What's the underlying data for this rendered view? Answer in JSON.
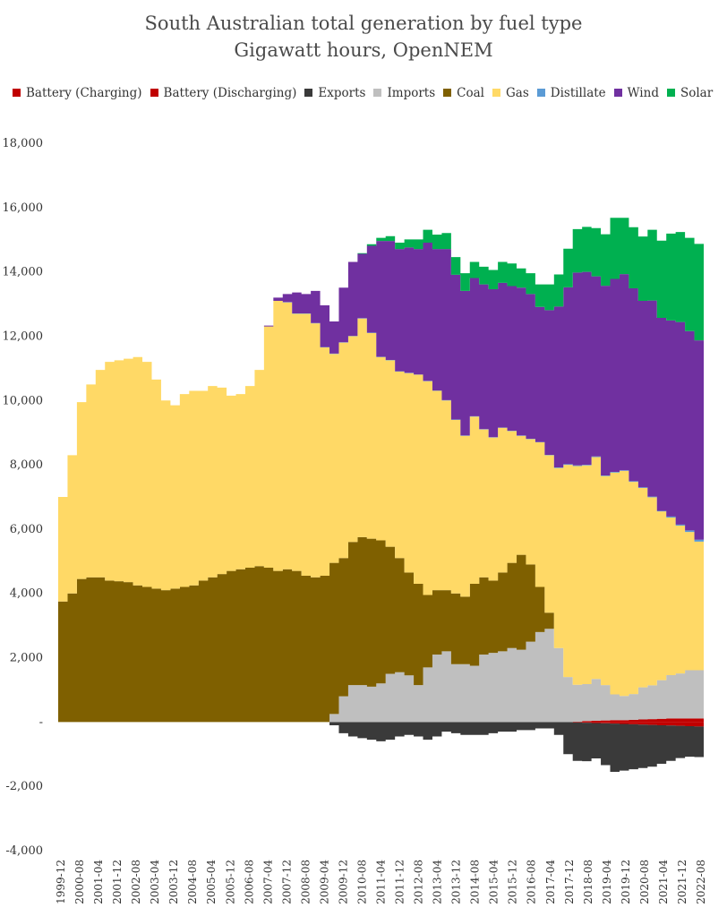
{
  "chart_data": {
    "type": "area",
    "stacked": true,
    "title": "South Australian total generation by fuel type",
    "subtitle": "Gigawatt hours, OpenNEM",
    "legend_position": "top",
    "ylim": [
      -4000,
      18000
    ],
    "yticks": [
      -4000,
      -2000,
      0,
      2000,
      4000,
      6000,
      8000,
      10000,
      12000,
      14000,
      16000,
      18000
    ],
    "ytick_labels": [
      "-4,000",
      "-2,000",
      "-",
      "2,000",
      "4,000",
      "6,000",
      "8,000",
      "10,000",
      "12,000",
      "14,000",
      "16,000",
      "18,000"
    ],
    "xtick_labels": [
      "1999-12",
      "2000-08",
      "2001-04",
      "2001-12",
      "2002-08",
      "2003-04",
      "2003-12",
      "2004-08",
      "2005-04",
      "2005-12",
      "2006-08",
      "2007-04",
      "2007-12",
      "2008-08",
      "2009-04",
      "2009-12",
      "2010-08",
      "2011-04",
      "2011-12",
      "2012-08",
      "2013-04",
      "2013-12",
      "2014-08",
      "2015-04",
      "2015-12",
      "2016-08",
      "2017-04",
      "2017-12",
      "2018-08",
      "2019-04",
      "2019-12",
      "2020-08",
      "2021-04",
      "2021-12",
      "2022-08"
    ],
    "x": [
      "1999-12",
      "2000-04",
      "2000-08",
      "2000-12",
      "2001-04",
      "2001-08",
      "2001-12",
      "2002-04",
      "2002-08",
      "2002-12",
      "2003-04",
      "2003-08",
      "2003-12",
      "2004-04",
      "2004-08",
      "2004-12",
      "2005-04",
      "2005-08",
      "2005-12",
      "2006-04",
      "2006-08",
      "2006-12",
      "2007-04",
      "2007-08",
      "2007-12",
      "2008-04",
      "2008-08",
      "2008-12",
      "2009-04",
      "2009-08",
      "2009-12",
      "2010-04",
      "2010-08",
      "2010-12",
      "2011-04",
      "2011-08",
      "2011-12",
      "2012-04",
      "2012-08",
      "2012-12",
      "2013-04",
      "2013-08",
      "2013-12",
      "2014-04",
      "2014-08",
      "2014-12",
      "2015-04",
      "2015-08",
      "2015-12",
      "2016-04",
      "2016-08",
      "2016-12",
      "2017-04",
      "2017-08",
      "2017-12",
      "2018-04",
      "2018-08",
      "2018-12",
      "2019-04",
      "2019-08",
      "2019-12",
      "2020-04",
      "2020-08",
      "2020-12",
      "2021-04",
      "2021-08",
      "2021-12",
      "2022-04",
      "2022-08",
      "2022-10"
    ],
    "series": [
      {
        "name": "Battery (Charging)",
        "color": "#c00000",
        "values": [
          0,
          0,
          0,
          0,
          0,
          0,
          0,
          0,
          0,
          0,
          0,
          0,
          0,
          0,
          0,
          0,
          0,
          0,
          0,
          0,
          0,
          0,
          0,
          0,
          0,
          0,
          0,
          0,
          0,
          0,
          0,
          0,
          0,
          0,
          0,
          0,
          0,
          0,
          0,
          0,
          0,
          0,
          0,
          0,
          0,
          0,
          0,
          0,
          0,
          0,
          0,
          0,
          0,
          0,
          0,
          -10,
          -20,
          -30,
          -40,
          -50,
          -60,
          -70,
          -80,
          -90,
          -100,
          -110,
          -120,
          -130,
          -140,
          -140
        ]
      },
      {
        "name": "Battery (Discharging)",
        "color": "#c00000",
        "values": [
          0,
          0,
          0,
          0,
          0,
          0,
          0,
          0,
          0,
          0,
          0,
          0,
          0,
          0,
          0,
          0,
          0,
          0,
          0,
          0,
          0,
          0,
          0,
          0,
          0,
          0,
          0,
          0,
          0,
          0,
          0,
          0,
          0,
          0,
          0,
          0,
          0,
          0,
          0,
          0,
          0,
          0,
          0,
          0,
          0,
          0,
          0,
          0,
          0,
          0,
          0,
          0,
          0,
          0,
          0,
          10,
          30,
          40,
          50,
          60,
          60,
          70,
          80,
          90,
          100,
          110,
          110,
          110,
          110,
          110
        ]
      },
      {
        "name": "Exports",
        "color": "#3a3a3a",
        "values": [
          0,
          0,
          0,
          0,
          0,
          0,
          0,
          0,
          0,
          0,
          0,
          0,
          0,
          0,
          0,
          0,
          0,
          0,
          0,
          0,
          0,
          0,
          0,
          0,
          0,
          0,
          0,
          0,
          0,
          -100,
          -350,
          -450,
          -500,
          -550,
          -600,
          -550,
          -450,
          -400,
          -450,
          -550,
          -450,
          -300,
          -350,
          -400,
          -400,
          -400,
          -350,
          -300,
          -300,
          -250,
          -250,
          -200,
          -200,
          -400,
          -1000,
          -1200,
          -1200,
          -1100,
          -1300,
          -1500,
          -1450,
          -1400,
          -1350,
          -1300,
          -1200,
          -1100,
          -1000,
          -950,
          -950,
          -950
        ]
      },
      {
        "name": "Imports",
        "color": "#bfbfbf",
        "values": [
          0,
          0,
          0,
          0,
          0,
          0,
          0,
          0,
          0,
          0,
          0,
          0,
          0,
          0,
          0,
          0,
          0,
          0,
          0,
          0,
          0,
          0,
          0,
          0,
          0,
          0,
          0,
          0,
          0,
          250,
          800,
          1150,
          1150,
          1100,
          1200,
          1500,
          1550,
          1450,
          1150,
          1700,
          2100,
          2200,
          1800,
          1800,
          1750,
          2100,
          2150,
          2200,
          2300,
          2250,
          2500,
          2800,
          2900,
          2300,
          1400,
          1150,
          1150,
          1300,
          1100,
          800,
          750,
          800,
          1000,
          1050,
          1200,
          1350,
          1400,
          1500,
          1500,
          1550
        ]
      },
      {
        "name": "Coal",
        "color": "#7f6000",
        "values": [
          3750,
          4000,
          4450,
          4500,
          4500,
          4400,
          4380,
          4350,
          4250,
          4200,
          4150,
          4100,
          4150,
          4200,
          4250,
          4400,
          4500,
          4600,
          4700,
          4750,
          4800,
          4850,
          4800,
          4700,
          4750,
          4700,
          4550,
          4500,
          4550,
          4700,
          4300,
          4450,
          4600,
          4600,
          4450,
          3950,
          3550,
          3200,
          3150,
          2250,
          2000,
          1900,
          2200,
          2100,
          2550,
          2400,
          2250,
          2450,
          2650,
          2950,
          2400,
          1400,
          500,
          0,
          0,
          0,
          0,
          0,
          0,
          0,
          0,
          0,
          0,
          0,
          0,
          0,
          0,
          0,
          0,
          0
        ]
      },
      {
        "name": "Gas",
        "color": "#ffd966",
        "values": [
          3250,
          4300,
          5500,
          6000,
          6450,
          6800,
          6870,
          6950,
          7100,
          7000,
          6500,
          5900,
          5700,
          6000,
          6050,
          5900,
          5950,
          5800,
          5450,
          5450,
          5650,
          6100,
          7500,
          8400,
          8300,
          8000,
          8150,
          7900,
          7100,
          6500,
          6700,
          6400,
          6800,
          6400,
          5700,
          5800,
          5800,
          6200,
          6500,
          6650,
          6200,
          5900,
          5400,
          5000,
          5200,
          4600,
          4450,
          4500,
          4100,
          3700,
          3900,
          4500,
          4900,
          5600,
          6600,
          6800,
          6800,
          6900,
          6500,
          6900,
          7000,
          6600,
          6200,
          5850,
          5250,
          4900,
          4600,
          4300,
          4000,
          3900
        ]
      },
      {
        "name": "Distillate",
        "color": "#5b9bd5",
        "values": [
          0,
          0,
          0,
          0,
          0,
          0,
          0,
          0,
          0,
          0,
          0,
          0,
          0,
          0,
          0,
          0,
          0,
          0,
          0,
          0,
          0,
          0,
          0,
          0,
          10,
          10,
          10,
          10,
          10,
          10,
          10,
          10,
          10,
          10,
          10,
          10,
          10,
          10,
          10,
          10,
          10,
          10,
          10,
          10,
          10,
          10,
          10,
          10,
          10,
          10,
          10,
          10,
          10,
          20,
          20,
          20,
          20,
          20,
          20,
          20,
          20,
          20,
          20,
          20,
          20,
          30,
          30,
          50,
          60,
          60
        ]
      },
      {
        "name": "Wind",
        "color": "#7030a0",
        "values": [
          0,
          0,
          0,
          0,
          0,
          0,
          0,
          0,
          0,
          0,
          0,
          0,
          0,
          0,
          0,
          0,
          0,
          0,
          0,
          0,
          0,
          0,
          30,
          100,
          250,
          650,
          600,
          1000,
          1300,
          1000,
          1700,
          2300,
          2000,
          2700,
          3600,
          3700,
          3800,
          3900,
          3900,
          4300,
          4400,
          4700,
          4500,
          4500,
          4300,
          4500,
          4600,
          4500,
          4500,
          4600,
          4500,
          4200,
          4500,
          5000,
          5500,
          6000,
          6000,
          5600,
          5900,
          6000,
          6100,
          6000,
          5800,
          6100,
          6000,
          6100,
          6300,
          6200,
          6200,
          6300
        ]
      },
      {
        "name": "Solar",
        "color": "#00b050",
        "values": [
          0,
          0,
          0,
          0,
          0,
          0,
          0,
          0,
          0,
          0,
          0,
          0,
          0,
          0,
          0,
          0,
          0,
          0,
          0,
          0,
          0,
          0,
          0,
          0,
          0,
          0,
          0,
          0,
          0,
          0,
          0,
          0,
          20,
          50,
          100,
          150,
          200,
          250,
          300,
          400,
          450,
          500,
          550,
          550,
          500,
          550,
          600,
          650,
          700,
          600,
          650,
          700,
          800,
          1000,
          1200,
          1350,
          1400,
          1500,
          1600,
          1900,
          1750,
          1900,
          2000,
          2200,
          2400,
          2700,
          2800,
          2900,
          3000,
          3050
        ]
      }
    ]
  }
}
